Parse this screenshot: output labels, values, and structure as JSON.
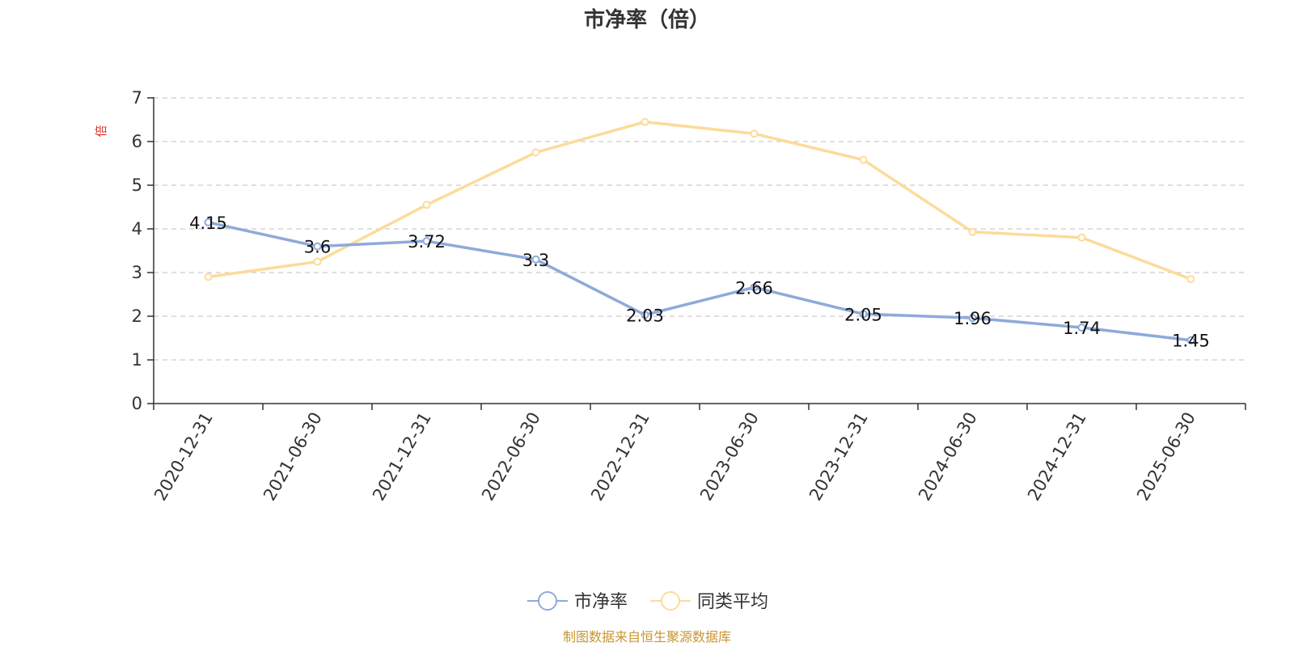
{
  "chart_data": {
    "type": "line",
    "title": "市净率（倍）",
    "ylabel": "倍",
    "xlabel": "",
    "ylim": [
      0,
      7
    ],
    "yticks": [
      0,
      1,
      2,
      3,
      4,
      5,
      6,
      7
    ],
    "grid": true,
    "legend_position": "bottom",
    "categories": [
      "2020-12-31",
      "2021-06-30",
      "2021-12-31",
      "2022-06-30",
      "2022-12-31",
      "2023-06-30",
      "2023-12-31",
      "2024-06-30",
      "2024-12-31",
      "2025-06-30"
    ],
    "series": [
      {
        "name": "市净率",
        "color": "#8eaadb",
        "show_labels": true,
        "values": [
          4.15,
          3.6,
          3.72,
          3.3,
          2.03,
          2.66,
          2.05,
          1.96,
          1.74,
          1.45
        ]
      },
      {
        "name": "同类平均",
        "color": "#fcdb9a",
        "show_labels": false,
        "values": [
          2.9,
          3.25,
          4.55,
          5.75,
          6.45,
          6.18,
          5.58,
          3.93,
          3.8,
          2.85
        ]
      }
    ],
    "source": "制图数据来自恒生聚源数据库"
  }
}
